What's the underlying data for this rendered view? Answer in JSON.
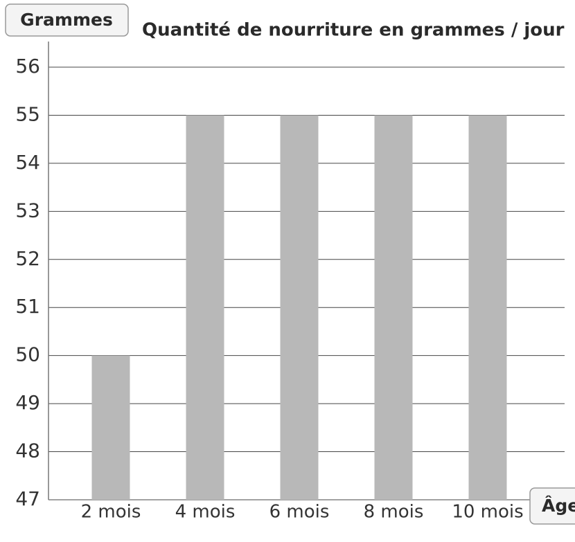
{
  "chart_data": {
    "type": "bar",
    "title": "Quantité de nourriture en grammes / jour",
    "y_label": "Grammes",
    "x_label": "Âge",
    "categories": [
      "2 mois",
      "4 mois",
      "6 mois",
      "8 mois",
      "10 mois"
    ],
    "values": [
      50,
      55,
      55,
      55,
      55
    ],
    "color": "#b8b8b8",
    "ylim": [
      47,
      56
    ],
    "yticks": [
      47,
      48,
      49,
      50,
      51,
      52,
      53,
      54,
      55,
      56
    ],
    "grid": true
  }
}
